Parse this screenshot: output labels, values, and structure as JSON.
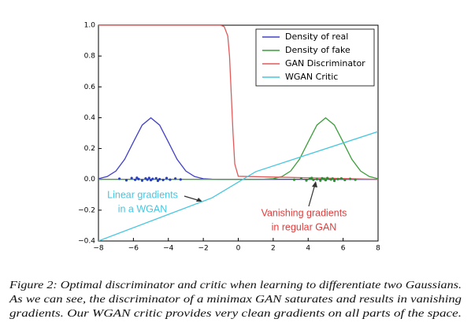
{
  "chart_data": {
    "type": "line",
    "xlim": [
      -8,
      8
    ],
    "ylim": [
      -0.4,
      1.0
    ],
    "xticks": [
      {
        "value": -8,
        "label": "−8"
      },
      {
        "value": -6,
        "label": "−6"
      },
      {
        "value": -4,
        "label": "−4"
      },
      {
        "value": -2,
        "label": "−2"
      },
      0,
      2,
      4,
      6,
      8
    ],
    "yticks": [
      {
        "value": -0.4,
        "label": "−0.4"
      },
      {
        "value": -0.2,
        "label": "−0.2"
      },
      {
        "value": 0,
        "label": "0.0"
      },
      {
        "value": 0.2,
        "label": "0.2"
      },
      {
        "value": 0.4,
        "label": "0.4"
      },
      {
        "value": 0.6,
        "label": "0.6"
      },
      {
        "value": 0.8,
        "label": "0.8"
      },
      {
        "value": 1.0,
        "label": "1.0"
      }
    ],
    "grid": false,
    "legend": "upper right",
    "series": [
      {
        "name": "Density of real",
        "color": "#4040c8",
        "x": [
          -8,
          -7.5,
          -7,
          -6.5,
          -6,
          -5.5,
          -5,
          -4.5,
          -4,
          -3.5,
          -3,
          -2.5,
          -2,
          -1.5,
          -1,
          -0.5,
          0,
          0.5,
          1,
          1.5,
          2,
          2.5,
          3,
          3.5,
          4,
          4.5,
          5,
          5.5,
          6,
          6.5,
          7,
          7.5,
          8
        ],
        "values": [
          0.004,
          0.018,
          0.054,
          0.13,
          0.242,
          0.352,
          0.399,
          0.352,
          0.242,
          0.13,
          0.054,
          0.018,
          0.004,
          0.001,
          0,
          0,
          0,
          0,
          0,
          0,
          0,
          0,
          0,
          0,
          0,
          0,
          0,
          0,
          0,
          0,
          0,
          0,
          0
        ]
      },
      {
        "name": "Density of fake",
        "color": "#3c9e3c",
        "x": [
          -8,
          -7.5,
          -7,
          -6.5,
          -6,
          -5.5,
          -5,
          -4.5,
          -4,
          -3.5,
          -3,
          -2.5,
          -2,
          -1.5,
          -1,
          -0.5,
          0,
          0.5,
          1,
          1.5,
          2,
          2.5,
          3,
          3.5,
          4,
          4.5,
          5,
          5.5,
          6,
          6.5,
          7,
          7.5,
          8
        ],
        "values": [
          0,
          0,
          0,
          0,
          0,
          0,
          0,
          0,
          0,
          0,
          0,
          0,
          0,
          0,
          0,
          0,
          0,
          0,
          0,
          0.001,
          0.004,
          0.018,
          0.054,
          0.13,
          0.242,
          0.352,
          0.399,
          0.352,
          0.242,
          0.13,
          0.054,
          0.018,
          0.004
        ]
      },
      {
        "name": "GAN Discriminator",
        "color": "#e05a5a",
        "x": [
          -8,
          -1,
          -0.8,
          -0.6,
          -0.5,
          -0.4,
          -0.3,
          -0.2,
          0,
          8
        ],
        "values": [
          1,
          1,
          0.99,
          0.93,
          0.8,
          0.55,
          0.3,
          0.1,
          0.02,
          0
        ]
      },
      {
        "name": "WGAN Critic",
        "color": "#45c6e0",
        "x": [
          -8,
          -1.5,
          1,
          8
        ],
        "values": [
          -0.4,
          -0.12,
          0.05,
          0.31
        ]
      }
    ],
    "samples": [
      {
        "color": "#2a3fc0",
        "x": [
          -6.8,
          -6.4,
          -6.1,
          -5.9,
          -5.8,
          -5.7,
          -5.5,
          -5.3,
          -5.2,
          -5.1,
          -5.0,
          -4.9,
          -4.7,
          -4.6,
          -4.5,
          -4.3,
          -4.1,
          -3.9,
          -3.6,
          -3.3
        ],
        "values": [
          0.004,
          -0.006,
          0.008,
          -0.003,
          0.01,
          0.002,
          -0.008,
          0.006,
          -0.002,
          0.009,
          -0.005,
          0.003,
          0.007,
          -0.009,
          0.001,
          -0.004,
          0.008,
          -0.002,
          0.005,
          -0.001
        ]
      },
      {
        "color": "#2f8f2f",
        "x": [
          3.2,
          3.6,
          3.9,
          4.1,
          4.2,
          4.3,
          4.5,
          4.7,
          4.8,
          4.9,
          5.0,
          5.1,
          5.3,
          5.4,
          5.5,
          5.7,
          5.9,
          6.1,
          6.4,
          6.7
        ],
        "values": [
          -0.002,
          0.006,
          -0.007,
          0.004,
          0.009,
          -0.003,
          0.001,
          -0.008,
          0.007,
          0.003,
          -0.005,
          0.008,
          -0.001,
          0.005,
          -0.009,
          0.002,
          0.006,
          -0.004,
          0.003,
          -0.002
        ]
      }
    ],
    "annotations": [
      {
        "lines": [
          "Linear gradients",
          "in a WGAN"
        ],
        "color": "#45c6e0"
      },
      {
        "lines": [
          "Vanishing gradients",
          "in regular GAN"
        ],
        "color": "#e03c3c"
      }
    ]
  },
  "caption": {
    "lines": [
      "Figure 2: Optimal discriminator and critic when learning to differentiate two Gaussians.",
      "As we can see, the discriminator of a minimax GAN saturates and results in vanishing",
      "gradients. Our WGAN critic provides very clean gradients on all parts of the space."
    ]
  }
}
